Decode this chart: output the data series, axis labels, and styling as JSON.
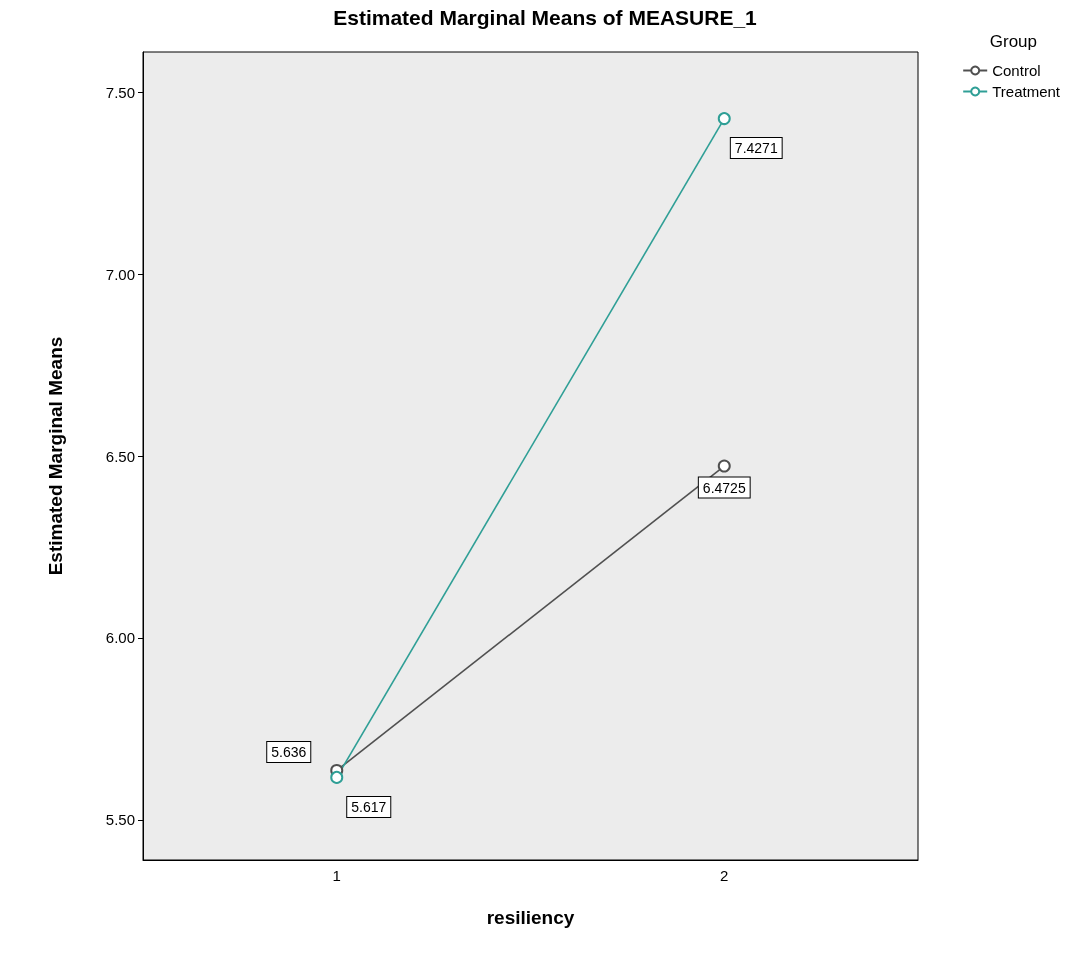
{
  "chart_data": {
    "type": "line",
    "title": "Estimated Marginal Means of MEASURE_1",
    "xlabel": "resiliency",
    "ylabel": "Estimated Marginal Means",
    "legend_title": "Group",
    "categories": [
      "1",
      "2"
    ],
    "series": [
      {
        "name": "Control",
        "color": "#505050",
        "values": [
          5.636,
          6.4725
        ]
      },
      {
        "name": "Treatment",
        "color": "#2f9f96",
        "values": [
          5.617,
          7.4271
        ]
      }
    ],
    "ylim": [
      5.39,
      7.61
    ],
    "yticks": [
      {
        "value": 5.5,
        "label": "5.50"
      },
      {
        "value": 6,
        "label": "6.00"
      },
      {
        "value": 6.5,
        "label": "6.50"
      },
      {
        "value": 7,
        "label": "7.00"
      },
      {
        "value": 7.5,
        "label": "7.50"
      }
    ],
    "data_labels": true,
    "marker": "circle",
    "legend": "top right",
    "grid": false
  }
}
